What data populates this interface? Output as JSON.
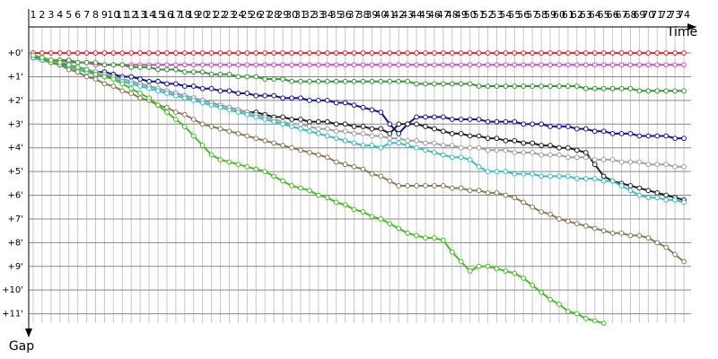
{
  "chart_data": {
    "type": "line",
    "x_label": "Time",
    "y_label": "Gap",
    "x": [
      1,
      2,
      3,
      4,
      5,
      6,
      7,
      8,
      9,
      10,
      11,
      12,
      13,
      14,
      15,
      16,
      17,
      18,
      19,
      20,
      21,
      22,
      23,
      24,
      25,
      26,
      27,
      28,
      29,
      30,
      31,
      32,
      33,
      34,
      35,
      36,
      37,
      38,
      39,
      40,
      41,
      42,
      43,
      44,
      45,
      46,
      47,
      48,
      49,
      50,
      51,
      52,
      53,
      54,
      55,
      56,
      57,
      58,
      59,
      60,
      61,
      62,
      63,
      64,
      65,
      66,
      67,
      68,
      69,
      70,
      71,
      72,
      73,
      74
    ],
    "xlim": [
      0.5,
      74.8
    ],
    "ylim": [
      -1.1,
      12
    ],
    "yticks": [
      {
        "value": 0,
        "label": "+0'"
      },
      {
        "value": 1,
        "label": "+1'"
      },
      {
        "value": 2,
        "label": "+2'"
      },
      {
        "value": 3,
        "label": "+3'"
      },
      {
        "value": 4,
        "label": "+4'"
      },
      {
        "value": 5,
        "label": "+5'"
      },
      {
        "value": 6,
        "label": "+6'"
      },
      {
        "value": 7,
        "label": "+7'"
      },
      {
        "value": 8,
        "label": "+8'"
      },
      {
        "value": 9,
        "label": "+9'"
      },
      {
        "value": 10,
        "label": "+10'"
      },
      {
        "value": 11,
        "label": "+11'"
      }
    ],
    "grid": true,
    "series": [
      {
        "color": "#e8202a",
        "values": [
          0,
          0,
          0,
          0,
          0,
          0,
          0,
          0,
          0,
          0,
          0,
          0,
          0,
          0,
          0,
          0,
          0,
          0,
          0,
          0,
          0,
          0,
          0,
          0,
          0,
          0,
          0,
          0,
          0,
          0,
          0,
          0,
          0,
          0,
          0,
          0,
          0,
          0,
          0,
          0,
          0,
          0,
          0,
          0,
          0,
          0,
          0,
          0,
          0,
          0,
          0,
          0,
          0,
          0,
          0,
          0,
          0,
          0,
          0,
          0,
          0,
          0,
          0,
          0,
          0,
          0,
          0,
          0,
          0,
          0,
          0,
          0,
          0,
          0
        ]
      },
      {
        "color": "#e040c8",
        "values": [
          0.1,
          0.2,
          0.3,
          0.3,
          0.4,
          0.4,
          0.4,
          0.5,
          0.5,
          0.5,
          0.5,
          0.5,
          0.5,
          0.5,
          0.5,
          0.5,
          0.5,
          0.5,
          0.5,
          0.5,
          0.5,
          0.5,
          0.5,
          0.5,
          0.5,
          0.5,
          0.5,
          0.5,
          0.5,
          0.5,
          0.5,
          0.5,
          0.5,
          0.5,
          0.5,
          0.5,
          0.5,
          0.5,
          0.5,
          0.5,
          0.5,
          0.5,
          0.5,
          0.5,
          0.5,
          0.5,
          0.5,
          0.5,
          0.5,
          0.5,
          0.5,
          0.5,
          0.5,
          0.5,
          0.5,
          0.5,
          0.5,
          0.5,
          0.5,
          0.5,
          0.5,
          0.5,
          0.5,
          0.5,
          0.5,
          0.5,
          0.5,
          0.5,
          0.5,
          0.5,
          0.5,
          0.5,
          0.5,
          0.5
        ]
      },
      {
        "color": "#2e9a2e",
        "values": [
          0.2,
          0.2,
          0.3,
          0.3,
          0.3,
          0.4,
          0.4,
          0.4,
          0.5,
          0.5,
          0.5,
          0.6,
          0.6,
          0.6,
          0.7,
          0.7,
          0.7,
          0.8,
          0.8,
          0.8,
          0.9,
          0.9,
          0.9,
          1.0,
          1.0,
          1.0,
          1.1,
          1.1,
          1.1,
          1.2,
          1.2,
          1.2,
          1.2,
          1.2,
          1.2,
          1.2,
          1.2,
          1.2,
          1.2,
          1.2,
          1.2,
          1.2,
          1.2,
          1.3,
          1.3,
          1.3,
          1.3,
          1.3,
          1.3,
          1.3,
          1.4,
          1.4,
          1.4,
          1.4,
          1.4,
          1.4,
          1.4,
          1.4,
          1.4,
          1.4,
          1.4,
          1.4,
          1.5,
          1.5,
          1.5,
          1.5,
          1.5,
          1.5,
          1.6,
          1.6,
          1.6,
          1.6,
          1.6,
          1.6
        ]
      },
      {
        "color": "#1010b0",
        "values": [
          0.2,
          0.3,
          0.4,
          0.5,
          0.5,
          0.6,
          0.7,
          0.8,
          0.8,
          0.9,
          1.0,
          1.0,
          1.1,
          1.2,
          1.2,
          1.3,
          1.3,
          1.4,
          1.4,
          1.5,
          1.5,
          1.6,
          1.6,
          1.7,
          1.7,
          1.8,
          1.8,
          1.8,
          1.9,
          1.9,
          1.9,
          2.0,
          2.0,
          2.0,
          2.1,
          2.1,
          2.2,
          2.3,
          2.4,
          2.5,
          3.0,
          3.4,
          3.0,
          2.7,
          2.7,
          2.7,
          2.7,
          2.8,
          2.8,
          2.8,
          2.8,
          2.9,
          2.9,
          2.9,
          2.9,
          3.0,
          3.0,
          3.0,
          3.1,
          3.1,
          3.1,
          3.2,
          3.2,
          3.3,
          3.3,
          3.4,
          3.4,
          3.4,
          3.5,
          3.5,
          3.5,
          3.5,
          3.6,
          3.6
        ]
      },
      {
        "color": "#202020",
        "values": [
          0.2,
          0.3,
          0.4,
          0.5,
          0.6,
          0.7,
          0.8,
          0.9,
          1.0,
          1.0,
          1.1,
          1.2,
          1.3,
          1.4,
          1.5,
          1.6,
          1.7,
          1.8,
          1.9,
          2.0,
          2.1,
          2.2,
          2.3,
          2.4,
          2.5,
          2.5,
          2.6,
          2.7,
          2.7,
          2.8,
          2.8,
          2.9,
          2.9,
          2.9,
          3.0,
          3.0,
          3.1,
          3.1,
          3.2,
          3.2,
          3.4,
          3.0,
          3.0,
          3.0,
          3.1,
          3.2,
          3.3,
          3.4,
          3.4,
          3.5,
          3.5,
          3.6,
          3.6,
          3.7,
          3.7,
          3.8,
          3.8,
          3.9,
          3.9,
          4.0,
          4.0,
          4.1,
          4.2,
          4.7,
          5.2,
          5.4,
          5.5,
          5.6,
          5.7,
          5.8,
          5.9,
          6.0,
          6.1,
          6.2
        ]
      },
      {
        "color": "#a0a0a0",
        "values": [
          0.1,
          0.2,
          0.3,
          0.4,
          0.5,
          0.6,
          0.7,
          0.8,
          0.9,
          1.0,
          1.1,
          1.2,
          1.3,
          1.4,
          1.5,
          1.6,
          1.7,
          1.8,
          1.9,
          2.0,
          2.1,
          2.2,
          2.3,
          2.4,
          2.5,
          2.6,
          2.7,
          2.8,
          2.9,
          3.0,
          3.0,
          3.1,
          3.2,
          3.2,
          3.3,
          3.3,
          3.4,
          3.4,
          3.5,
          3.5,
          3.6,
          3.6,
          3.7,
          3.7,
          3.8,
          3.8,
          3.9,
          3.9,
          4.0,
          4.0,
          4.0,
          4.1,
          4.1,
          4.1,
          4.2,
          4.2,
          4.2,
          4.3,
          4.3,
          4.3,
          4.4,
          4.4,
          4.4,
          4.5,
          4.5,
          4.5,
          4.6,
          4.6,
          4.6,
          4.7,
          4.7,
          4.7,
          4.8,
          4.8
        ]
      },
      {
        "color": "#30c0cc",
        "values": [
          0.2,
          0.3,
          0.4,
          0.5,
          0.6,
          0.7,
          0.8,
          0.9,
          1.0,
          1.1,
          1.2,
          1.3,
          1.4,
          1.5,
          1.6,
          1.7,
          1.8,
          1.9,
          2.0,
          2.1,
          2.2,
          2.3,
          2.4,
          2.5,
          2.6,
          2.7,
          2.8,
          2.9,
          3.0,
          3.1,
          3.2,
          3.3,
          3.4,
          3.5,
          3.6,
          3.7,
          3.8,
          3.9,
          3.9,
          4.0,
          3.8,
          3.8,
          3.9,
          4.0,
          4.1,
          4.2,
          4.3,
          4.4,
          4.4,
          4.5,
          4.8,
          5.0,
          5.0,
          5.0,
          5.1,
          5.1,
          5.1,
          5.2,
          5.2,
          5.2,
          5.2,
          5.3,
          5.3,
          5.3,
          5.4,
          5.4,
          5.6,
          5.8,
          6.0,
          6.1,
          6.1,
          6.2,
          6.2,
          6.3
        ]
      },
      {
        "color": "#8a7a50",
        "values": [
          0.1,
          0.2,
          0.4,
          0.5,
          0.7,
          0.8,
          1.0,
          1.1,
          1.3,
          1.4,
          1.6,
          1.7,
          1.9,
          2.0,
          2.2,
          2.3,
          2.5,
          2.6,
          2.8,
          3.0,
          3.1,
          3.2,
          3.3,
          3.4,
          3.5,
          3.6,
          3.7,
          3.8,
          3.9,
          4.0,
          4.1,
          4.2,
          4.3,
          4.4,
          4.6,
          4.7,
          4.8,
          4.9,
          5.1,
          5.2,
          5.4,
          5.6,
          5.6,
          5.6,
          5.6,
          5.6,
          5.6,
          5.7,
          5.7,
          5.8,
          5.8,
          5.9,
          5.9,
          6.0,
          6.1,
          6.3,
          6.5,
          6.7,
          6.8,
          7.0,
          7.1,
          7.2,
          7.3,
          7.4,
          7.5,
          7.6,
          7.6,
          7.7,
          7.7,
          7.8,
          8.0,
          8.2,
          8.5,
          8.8
        ]
      },
      {
        "color": "#3cc41c",
        "values": [
          0.1,
          0.2,
          0.3,
          0.4,
          0.5,
          0.6,
          0.7,
          0.9,
          1.0,
          1.1,
          1.3,
          1.5,
          1.7,
          1.9,
          2.2,
          2.5,
          2.8,
          3.1,
          3.5,
          3.9,
          4.3,
          4.5,
          4.6,
          4.7,
          4.8,
          4.9,
          5.0,
          5.2,
          5.4,
          5.6,
          5.7,
          5.8,
          6.0,
          6.1,
          6.3,
          6.4,
          6.6,
          6.7,
          6.9,
          7.0,
          7.2,
          7.4,
          7.6,
          7.7,
          7.8,
          7.8,
          7.9,
          8.4,
          8.8,
          9.2,
          9.0,
          9.0,
          9.1,
          9.2,
          9.3,
          9.5,
          9.8,
          10.1,
          10.4,
          10.6,
          10.9,
          11.0,
          11.2,
          11.3,
          11.4,
          null,
          null,
          null,
          null,
          null,
          null,
          null,
          null,
          null
        ]
      }
    ]
  }
}
